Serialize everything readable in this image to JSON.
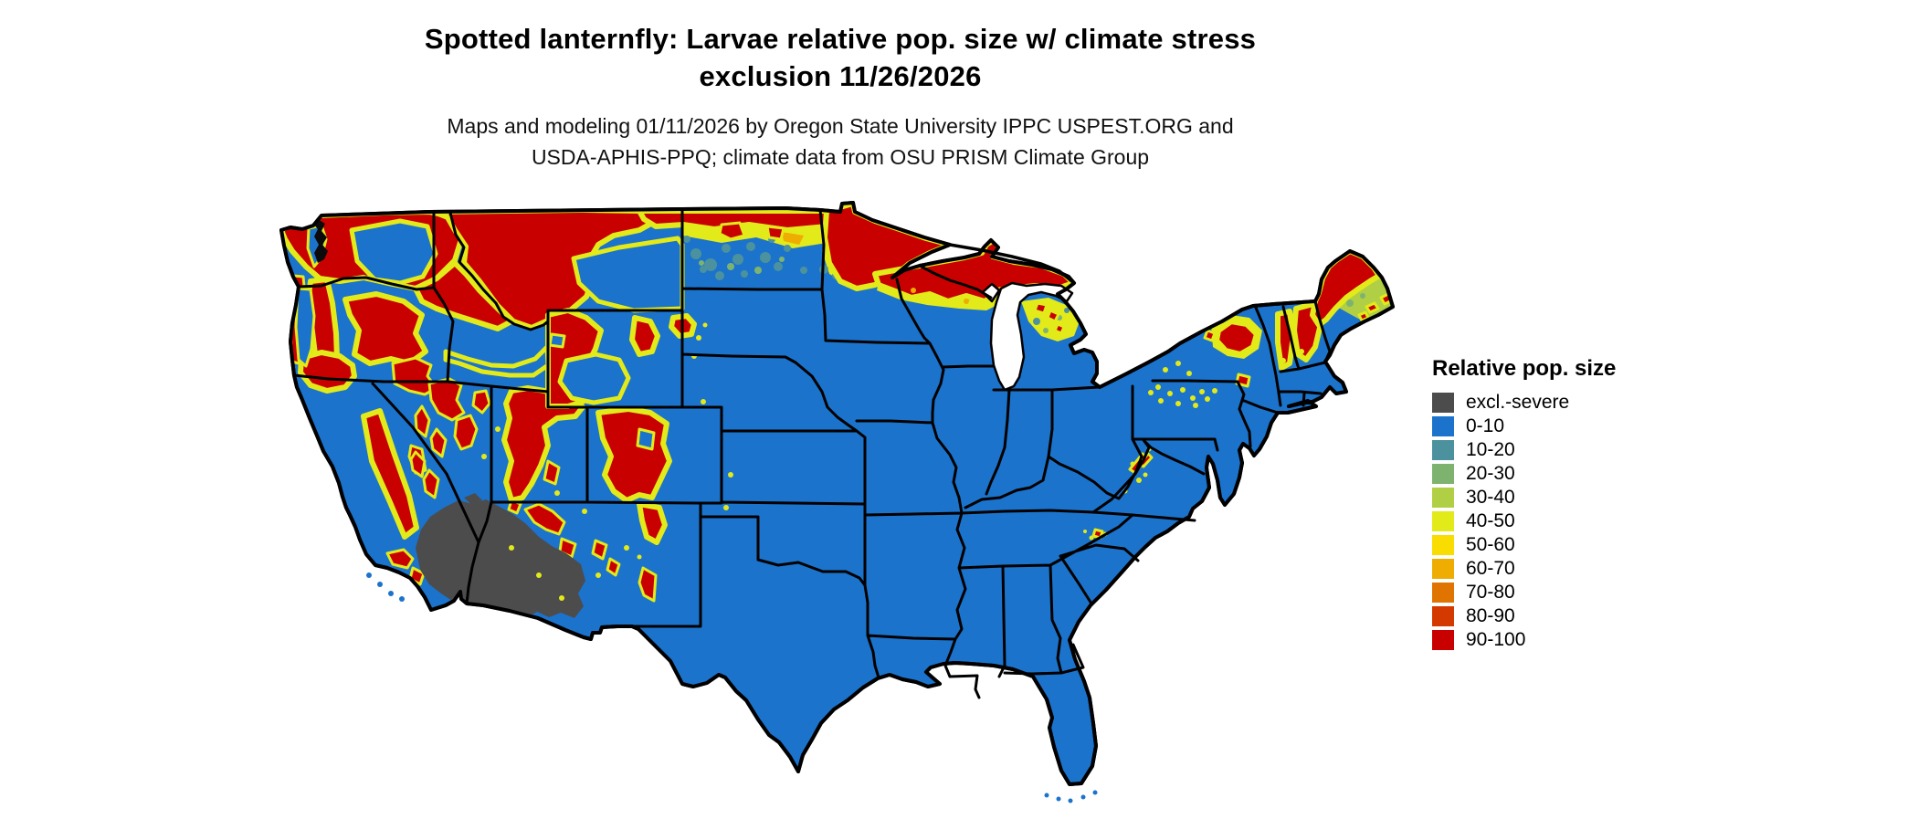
{
  "header": {
    "title": "Spotted lanternfly: Larvae relative pop. size w/ climate stress\nexclusion 11/26/2026",
    "subtitle": "Maps and modeling 01/11/2026 by Oregon State University IPPC USPEST.ORG and\nUSDA-APHIS-PPQ; climate data from OSU PRISM Climate Group"
  },
  "legend": {
    "title": "Relative pop. size",
    "items": [
      {
        "label": "excl.-severe",
        "color": "#4c4c4c"
      },
      {
        "label": "0-10",
        "color": "#1b73cc"
      },
      {
        "label": "10-20",
        "color": "#4b929e"
      },
      {
        "label": "20-30",
        "color": "#7eb36f"
      },
      {
        "label": "30-40",
        "color": "#b0cf45"
      },
      {
        "label": "40-50",
        "color": "#e2ea1a"
      },
      {
        "label": "50-60",
        "color": "#f9dc00"
      },
      {
        "label": "60-70",
        "color": "#eead00"
      },
      {
        "label": "70-80",
        "color": "#e07400"
      },
      {
        "label": "80-90",
        "color": "#d43900"
      },
      {
        "label": "90-100",
        "color": "#c80000"
      }
    ]
  },
  "chart_data": {
    "type": "choropleth_map",
    "region": "Contiguous United States with state borders",
    "variable": "Spotted lanternfly larvae relative population size (%) with climate stress exclusion",
    "map_date": "11/26/2026",
    "model_date": "01/11/2026",
    "classes": [
      "excl.-severe",
      "0-10",
      "10-20",
      "20-30",
      "30-40",
      "40-50",
      "50-60",
      "60-70",
      "70-80",
      "80-90",
      "90-100"
    ],
    "class_colors": [
      "#4c4c4c",
      "#1b73cc",
      "#4b929e",
      "#7eb36f",
      "#b0cf45",
      "#e2ea1a",
      "#f9dc00",
      "#eead00",
      "#e07400",
      "#d43900",
      "#c80000"
    ],
    "dominant_class": "0-10",
    "high_value_regions": [
      "Cascades and Olympic Mountains (WA/OR)",
      "Northern Rockies: Idaho panhandle, western Montana, NW Wyoming",
      "Sierra Nevada and Klamath Mountains (CA)",
      "Wasatch/Uinta Mountains (UT)",
      "Colorado Rockies and Sangre de Cristo (CO/NM)",
      "Black Hills (SD)",
      "Northern North Dakota border band",
      "NE Minnesota arrowhead and northern Wisconsin",
      "Upper Peninsula of Michigan",
      "Adirondacks (NY)",
      "Green/White Mountains (VT/NH)",
      "Northern Maine"
    ],
    "excluded_regions": [
      "Sonoran/Mojave deserts of SW Arizona and SE California (excl.-severe)"
    ],
    "water_bodies_shown_white": [
      "Great Lakes",
      "Atlantic",
      "Pacific",
      "Gulf of Mexico"
    ],
    "legend_position": "right"
  }
}
